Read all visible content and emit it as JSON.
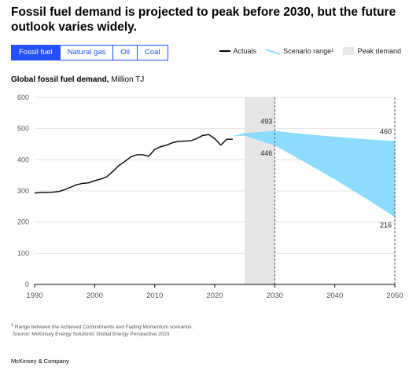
{
  "header": {
    "title": "Fossil fuel demand is projected to peak before 2030, but the future outlook varies widely."
  },
  "tabs": [
    {
      "label": "Fossil fuel",
      "active": true
    },
    {
      "label": "Natural gas",
      "active": false
    },
    {
      "label": "Oil",
      "active": false
    },
    {
      "label": "Coal",
      "active": false
    }
  ],
  "legend": {
    "actuals": "Actuals",
    "scenario": "Scenario range",
    "scenario_sup": "1",
    "peak": "Peak demand"
  },
  "chart_title": {
    "bold": "Global fossil fuel demand,",
    "unit": " Million TJ"
  },
  "colors": {
    "actuals": "#000000",
    "scenario": "#8ddcff",
    "peak": "#e6e6e6",
    "accent": "#2251ff"
  },
  "chart_data": {
    "type": "line",
    "title": "Global fossil fuel demand",
    "ylabel": "Million TJ",
    "xlim": [
      1990,
      2050
    ],
    "ylim": [
      0,
      600
    ],
    "x_ticks": [
      "1990",
      "2000",
      "2010",
      "2020",
      "2030",
      "2040",
      "2050"
    ],
    "x_tick_values": [
      1990,
      2000,
      2010,
      2020,
      2030,
      2040,
      2050
    ],
    "y_ticks": [
      "0",
      "100",
      "200",
      "300",
      "400",
      "500",
      "600"
    ],
    "y_tick_values": [
      0,
      100,
      200,
      300,
      400,
      500,
      600
    ],
    "grid": true,
    "series": [
      {
        "name": "Actuals",
        "x": [
          1990,
          1991,
          1992,
          1993,
          1994,
          1995,
          1996,
          1997,
          1998,
          1999,
          2000,
          2001,
          2002,
          2003,
          2004,
          2005,
          2006,
          2007,
          2008,
          2009,
          2010,
          2011,
          2012,
          2013,
          2014,
          2015,
          2016,
          2017,
          2018,
          2019,
          2020,
          2021,
          2022,
          2023
        ],
        "y": [
          293,
          295,
          295,
          296,
          298,
          304,
          312,
          320,
          324,
          326,
          333,
          338,
          345,
          362,
          381,
          394,
          409,
          416,
          416,
          411,
          433,
          442,
          447,
          455,
          459,
          460,
          461,
          468,
          478,
          481,
          468,
          447,
          466,
          466
        ]
      }
    ],
    "scenario_range": {
      "name": "Scenario range",
      "x": [
        2023,
        2025,
        2030,
        2035,
        2040,
        2045,
        2050
      ],
      "lower": [
        476,
        477,
        446,
        392,
        337,
        278,
        216
      ],
      "upper": [
        476,
        486,
        493,
        482,
        474,
        466,
        460
      ]
    },
    "peak_demand": {
      "name": "Peak demand",
      "x_start": 2025,
      "x_end": 2030
    },
    "annotations": [
      {
        "x": 2030,
        "y": 493,
        "label": "493"
      },
      {
        "x": 2030,
        "y": 446,
        "label": "446"
      },
      {
        "x": 2050,
        "y": 460,
        "label": "460"
      },
      {
        "x": 2050,
        "y": 216,
        "label": "216"
      }
    ]
  },
  "footnote": {
    "line1": "Range between the Achieved Commitments and Fading Momentum scenarios.",
    "line1_sup": "1",
    "line2": "Source: McKinsey Energy Solutions' Global Energy Perspective 2023"
  },
  "brand": "McKinsey & Company"
}
